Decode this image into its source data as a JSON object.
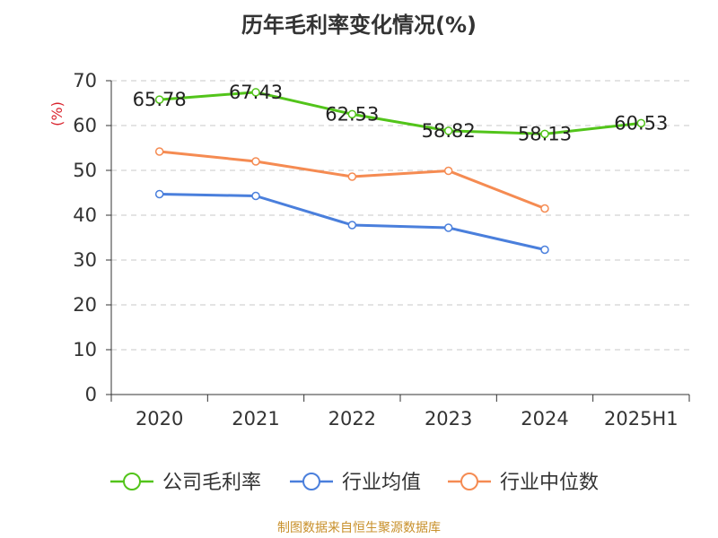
{
  "chart_data": {
    "type": "line",
    "title": "历年毛利率变化情况(%)",
    "ylabel": "(%)",
    "xlabel": "",
    "categories": [
      "2020",
      "2021",
      "2022",
      "2023",
      "2024",
      "2025H1"
    ],
    "ylim": [
      0,
      70
    ],
    "yticks": [
      0,
      10,
      20,
      30,
      40,
      50,
      60,
      70
    ],
    "grid": true,
    "legend_position": "bottom",
    "series": [
      {
        "name": "公司毛利率",
        "color": "#52c41a",
        "values": [
          65.78,
          67.43,
          62.53,
          58.82,
          58.13,
          60.53
        ],
        "labels": [
          "65.78",
          "67.43",
          "62.53",
          "58.82",
          "58.13",
          "60.53"
        ],
        "show_labels": true
      },
      {
        "name": "行业均值",
        "color": "#4a7fdc",
        "values": [
          44.7,
          44.3,
          37.8,
          37.2,
          32.3,
          null
        ],
        "show_labels": false
      },
      {
        "name": "行业中位数",
        "color": "#f58b52",
        "values": [
          54.2,
          52.0,
          48.6,
          49.9,
          41.5,
          null
        ],
        "show_labels": false
      }
    ]
  },
  "footer": {
    "source": "制图数据来自恒生聚源数据库"
  }
}
